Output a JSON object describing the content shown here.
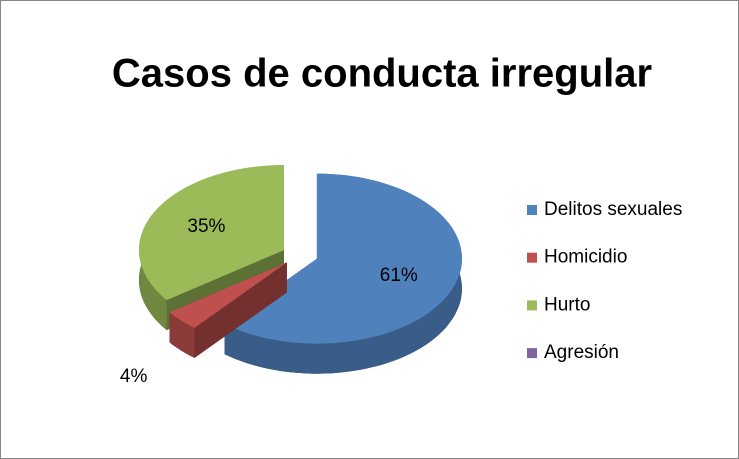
{
  "chart_data": {
    "type": "pie",
    "title": "Casos de conducta irregular",
    "categories": [
      "Delitos sexuales",
      "Homicidio",
      "Hurto",
      "Agresión"
    ],
    "values": [
      61,
      4,
      35,
      0
    ],
    "value_labels": [
      "61%",
      "4%",
      "35%",
      null
    ],
    "colors": [
      "#4f81bd",
      "#c0504d",
      "#9bbb59",
      "#8064a2"
    ],
    "legend": "right",
    "3d": true,
    "exploded": true
  }
}
